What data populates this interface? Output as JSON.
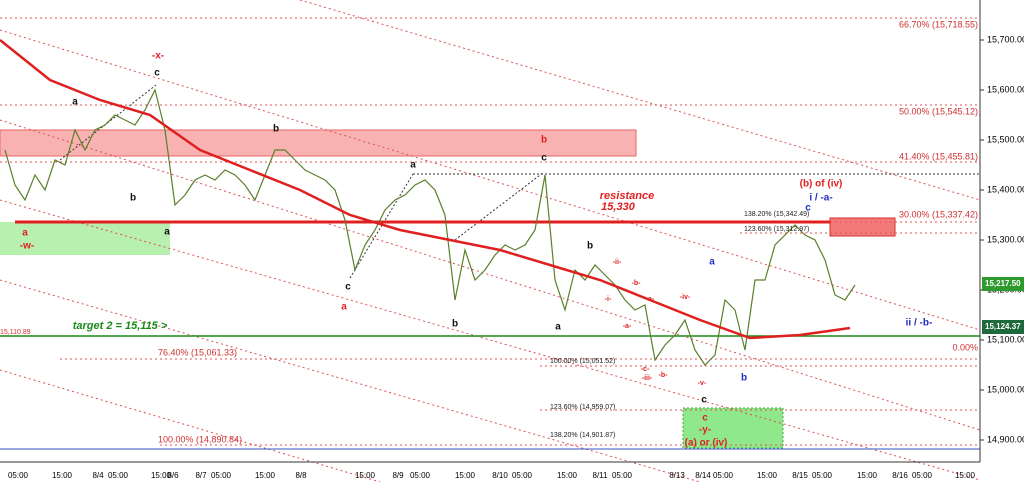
{
  "chart_data": {
    "type": "line",
    "ylim": [
      14856,
      15780
    ],
    "yticks": [
      {
        "value": 14900,
        "label": "14,900.00"
      },
      {
        "value": 15000,
        "label": "15,000.00"
      },
      {
        "value": 15100,
        "label": "15,100.00"
      },
      {
        "value": 15200,
        "label": "15,200.00"
      },
      {
        "value": 15300,
        "label": "15,300.00"
      },
      {
        "value": 15400,
        "label": "15,400.00"
      },
      {
        "value": 15500,
        "label": "15,500.00"
      },
      {
        "value": 15600,
        "label": "15,600.00"
      },
      {
        "value": 15700,
        "label": "15,700.00"
      }
    ],
    "x_labels": [
      "05:00",
      "15:00",
      "8/4",
      "05:00",
      "15:00",
      "8/6",
      "8/7",
      "05:00",
      "15:00",
      "8/8",
      "15:00",
      "8/9",
      "05:00",
      "15:00",
      "8/10",
      "05:00",
      "15:00",
      "8/11",
      "05:00",
      "8/13",
      "8/14",
      "05:00",
      "15:00",
      "8/15",
      "05:00",
      "15:00",
      "8/16",
      "05:00",
      "15:00"
    ],
    "series": [
      {
        "color": "#5a7f2a",
        "values": [
          15480,
          15410,
          15380,
          15430,
          15400,
          15460,
          15450,
          15520,
          15480,
          15520,
          15530,
          15550,
          15540,
          15530,
          15560,
          15600,
          15520,
          15370,
          15390,
          15420,
          15430,
          15420,
          15440,
          15430,
          15410,
          15380,
          15430,
          15480,
          15480,
          15460,
          15440,
          15430,
          15420,
          15400,
          15340,
          15240,
          15290,
          15320,
          15360,
          15380,
          15390,
          15410,
          15420,
          15400,
          15350,
          15180,
          15280,
          15220,
          15240,
          15270,
          15290,
          15280,
          15290,
          15320,
          15430,
          15220,
          15160,
          15240,
          15220,
          15250,
          15230,
          15210,
          15180,
          15160,
          15170,
          15060,
          15090,
          15110,
          15140,
          15080,
          15050,
          15070,
          15180,
          15160,
          15080,
          15220,
          15220,
          15290,
          15310,
          15330,
          15310,
          15300,
          15260,
          15190,
          15180,
          15210
        ]
      },
      {
        "color": "#e02020",
        "values": [
          15700,
          15620,
          15580,
          15550,
          15480,
          15440,
          15400,
          15350,
          15320,
          15300,
          15280,
          15250,
          15220,
          15180,
          15140,
          15104,
          15110,
          15124
        ]
      }
    ],
    "price_badges": [
      "15,217.50",
      "15,124.37"
    ],
    "fib_labels": [
      "66.70% (15,718.55)",
      "50.00% (15,545.12)",
      "41.40% (15,455.81)",
      "30.00% (15,337.42)",
      "0.00%",
      "76.40% (15,061.33)",
      "100.00% (14,890.84)",
      "138.20% (15,342.49)",
      "123.60% (15,312.97)",
      "100.00% (15,051.52)",
      "123.60% (14,959.07)",
      "138.20% (14,901.87)",
      "15,110.89"
    ],
    "annotations": [
      {
        "text": "-x-",
        "color": "#e02020"
      },
      {
        "text": "c",
        "color": "#111"
      },
      {
        "text": "a",
        "color": "#111"
      },
      {
        "text": "b",
        "color": "#111"
      },
      {
        "text": "b",
        "color": "#111"
      },
      {
        "text": "a",
        "color": "#111"
      },
      {
        "text": "a",
        "color": "#e02020"
      },
      {
        "text": "-w-",
        "color": "#e02020"
      },
      {
        "text": "b",
        "color": "#e02020"
      },
      {
        "text": "c",
        "color": "#111"
      },
      {
        "text": "a",
        "color": "#111"
      },
      {
        "text": "resistance",
        "color": "#e02020"
      },
      {
        "text": "15,330",
        "color": "#e02020"
      },
      {
        "text": "(b) of (iv)",
        "color": "#e02020"
      },
      {
        "text": "i / -a-",
        "color": "#2030c0"
      },
      {
        "text": "c",
        "color": "#2030c0"
      },
      {
        "text": "b",
        "color": "#111"
      },
      {
        "text": "a",
        "color": "#2030c0"
      },
      {
        "text": "-ii-",
        "color": "#e02020"
      },
      {
        "text": "-b-",
        "color": "#e02020"
      },
      {
        "text": "-i-",
        "color": "#e02020"
      },
      {
        "text": "-a-",
        "color": "#e02020"
      },
      {
        "text": "-iv-",
        "color": "#e02020"
      },
      {
        "text": "-a-",
        "color": "#e02020"
      },
      {
        "text": "c",
        "color": "#111"
      },
      {
        "text": "a",
        "color": "#e02020"
      },
      {
        "text": "b",
        "color": "#111"
      },
      {
        "text": "a",
        "color": "#111"
      },
      {
        "text": "-c-",
        "color": "#e02020"
      },
      {
        "text": "-iii-",
        "color": "#e02020"
      },
      {
        "text": "-b-",
        "color": "#e02020"
      },
      {
        "text": "-v-",
        "color": "#e02020"
      },
      {
        "text": "b",
        "color": "#2030c0"
      },
      {
        "text": "c",
        "color": "#111"
      },
      {
        "text": "c",
        "color": "#e02020"
      },
      {
        "text": "-y-",
        "color": "#e02020"
      },
      {
        "text": "(a) or (iv)",
        "color": "#e02020"
      },
      {
        "text": "ii / -b-",
        "color": "#2030c0"
      },
      {
        "text": "target 2 = 15,115 >",
        "color": "#1a8a1a"
      }
    ]
  }
}
